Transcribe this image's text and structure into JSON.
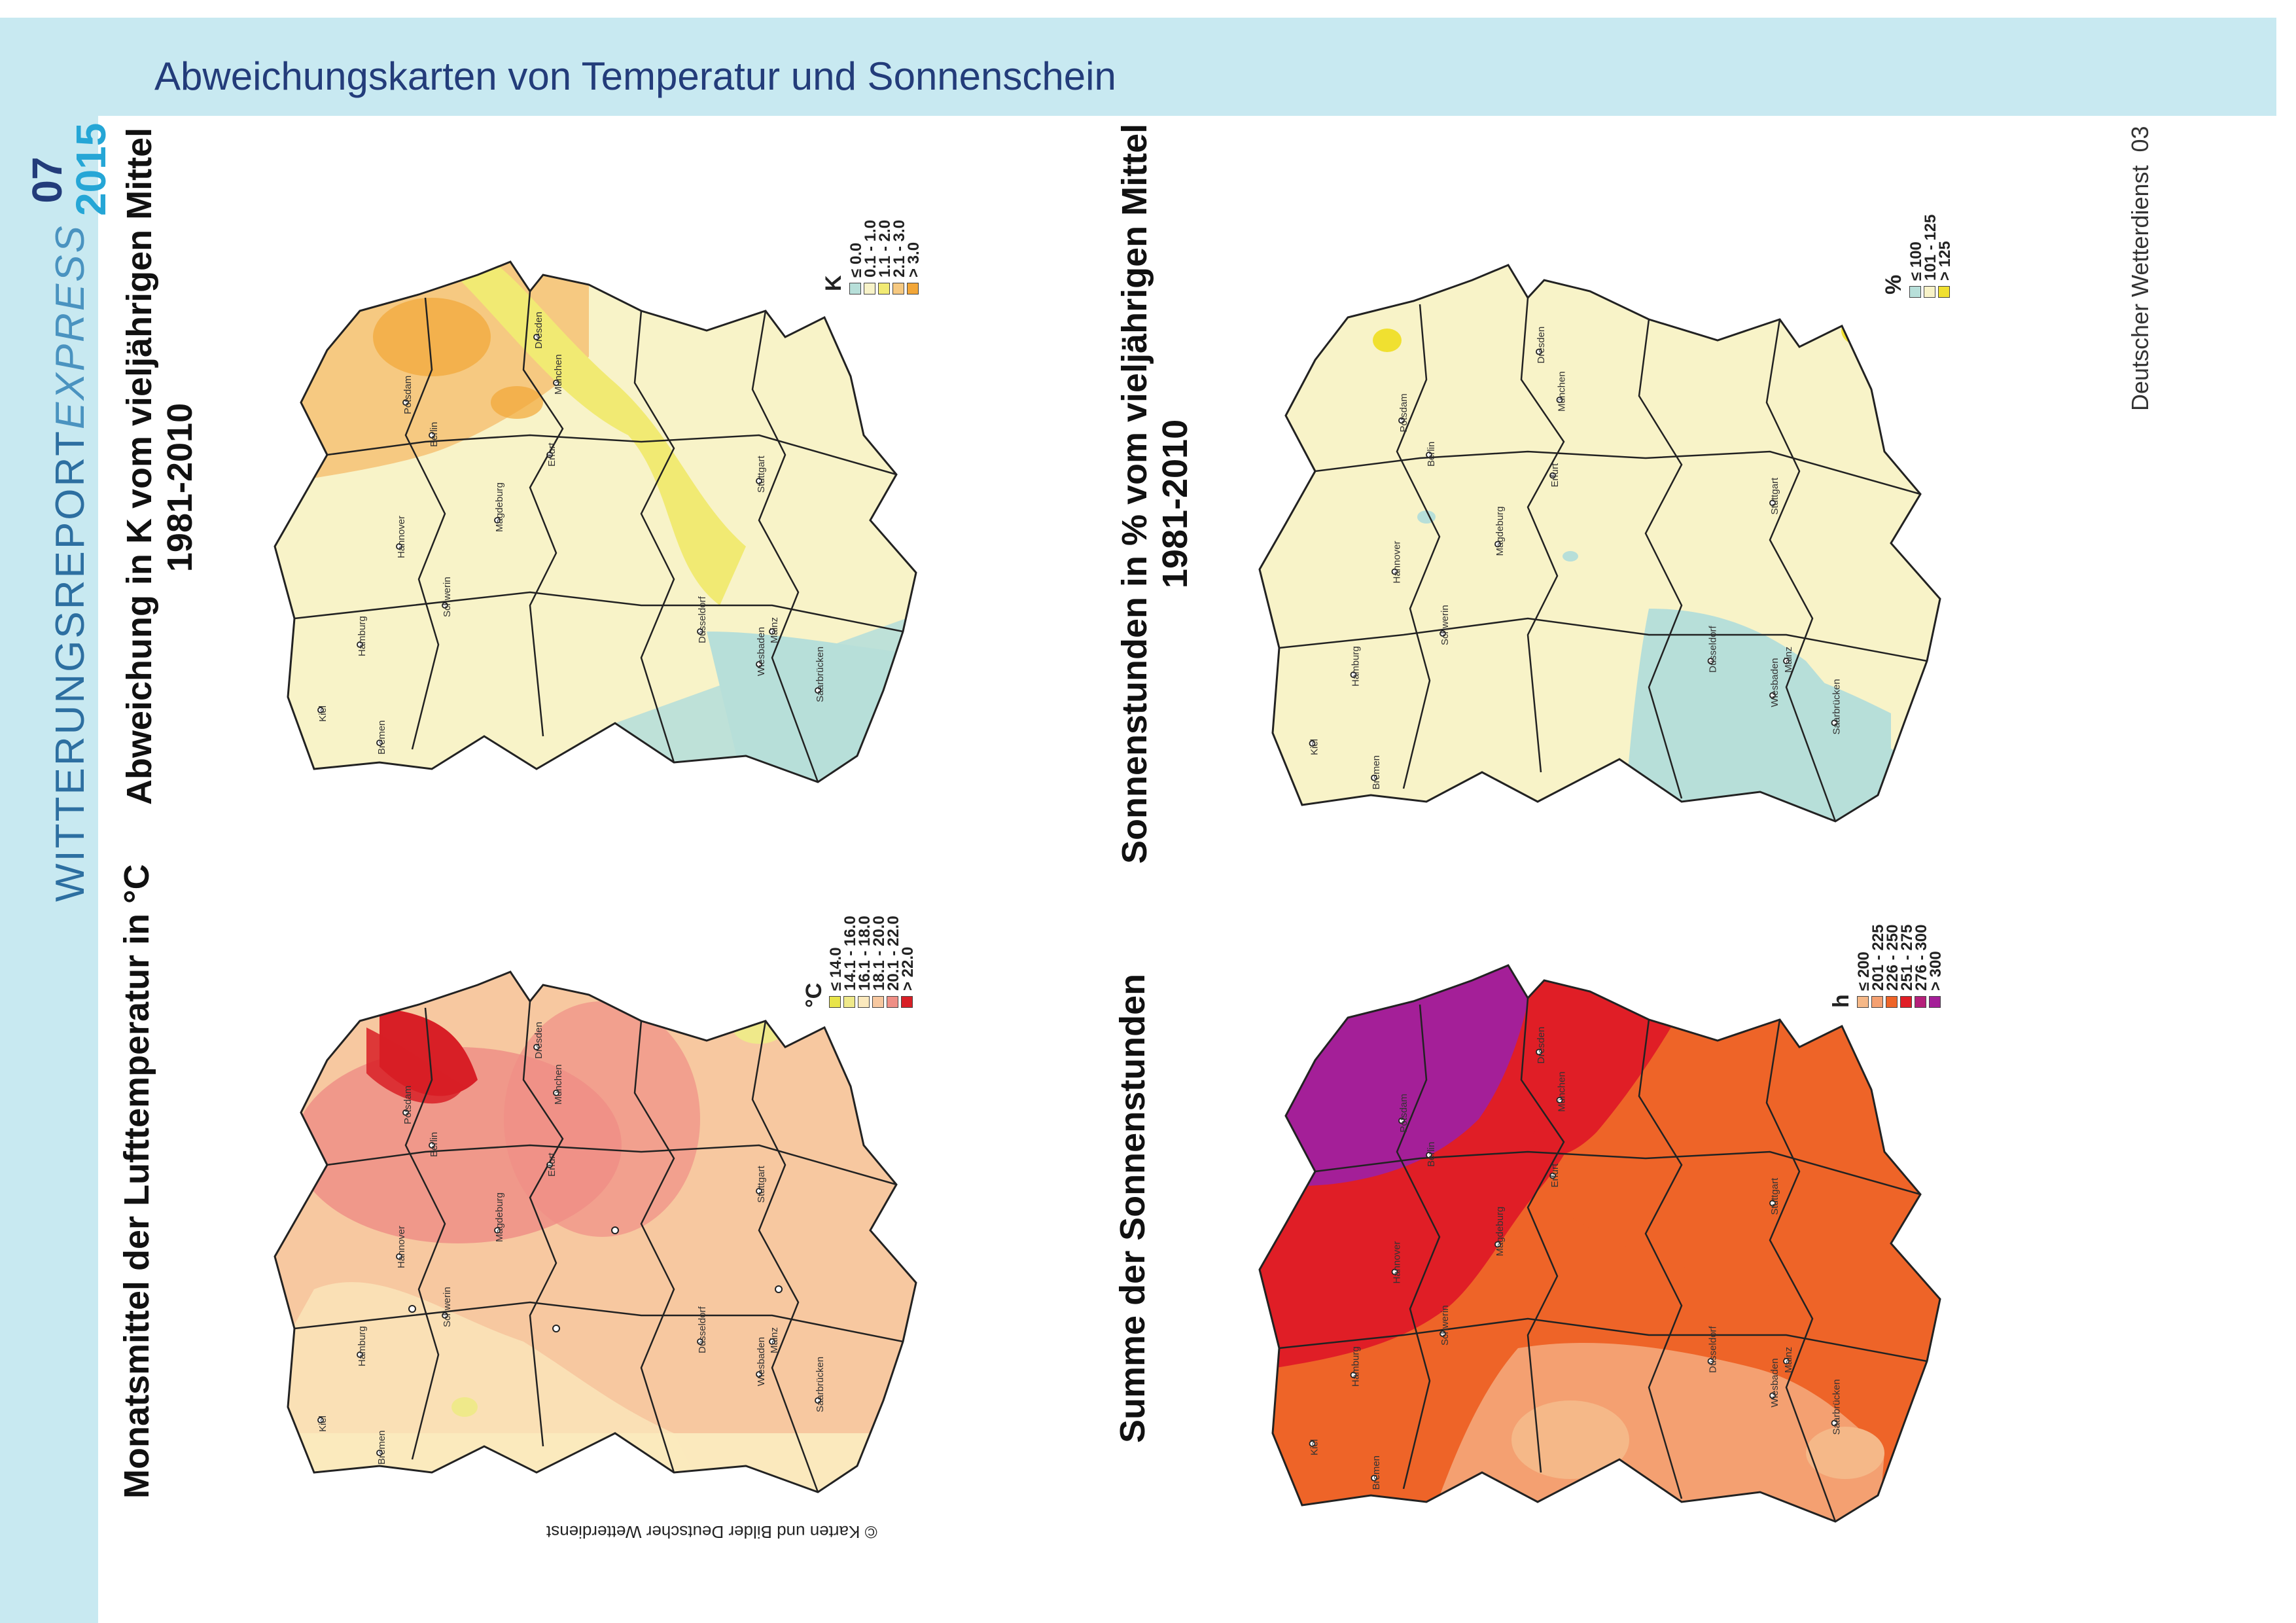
{
  "page": {
    "title": "Abweichungskarten von Temperatur und Sonnenschein",
    "brand_main": "WITTERUNGSREPORT",
    "brand_accent": "EXPRESS",
    "issue_month": "07",
    "issue_year": "2015",
    "publisher_label": "Deutscher Wetterdienst",
    "page_number": "03",
    "copyright": "© Karten und Bilder Deutscher Wetterdienst"
  },
  "colors": {
    "band": "#c8e9f1",
    "title_text": "#233c7a",
    "brand_text": "#2d6fa1",
    "year_text": "#25a6d6"
  },
  "maps": {
    "temperature": {
      "title": "Monatsmittel der Lufttemperatur in °C",
      "unit": "°C",
      "legend": [
        {
          "label": "≤ 14.0",
          "color": "#e8e44a"
        },
        {
          "label": "14.1 - 16.0",
          "color": "#efe98a"
        },
        {
          "label": "16.1 - 18.0",
          "color": "#fbe9bd"
        },
        {
          "label": "18.1 - 20.0",
          "color": "#f7c8a0"
        },
        {
          "label": "20.1 - 22.0",
          "color": "#ef8f86"
        },
        {
          "label": "> 22.0",
          "color": "#d81f26"
        }
      ]
    },
    "temp_anomaly": {
      "title_line1": "Abweichung in K vom vieljährigen Mittel",
      "title_line2": "1981-2010",
      "unit": "K",
      "legend": [
        {
          "label": "≤ 0.0",
          "color": "#b7dfd9"
        },
        {
          "label": "0.1 - 1.0",
          "color": "#f8f3c8"
        },
        {
          "label": "1.1 - 2.0",
          "color": "#f1ea73"
        },
        {
          "label": "2.1 - 3.0",
          "color": "#f6c981"
        },
        {
          "label": "> 3.0",
          "color": "#f2a638"
        }
      ]
    },
    "sunshine": {
      "title": "Summe der Sonnenstunden",
      "unit": "h",
      "legend": [
        {
          "label": "≤ 200",
          "color": "#f5b888"
        },
        {
          "label": "201 - 225",
          "color": "#f4a071"
        },
        {
          "label": "226 - 250",
          "color": "#ee6428"
        },
        {
          "label": "251 - 275",
          "color": "#e01e26"
        },
        {
          "label": "276 - 300",
          "color": "#b5207a"
        },
        {
          "label": "> 300",
          "color": "#a41f98"
        }
      ]
    },
    "sunshine_anomaly": {
      "title_line1": "Sonnenstunden in % vom vieljährigen Mittel",
      "title_line2": "1981-2010",
      "unit": "%",
      "legend": [
        {
          "label": "≤ 100",
          "color": "#b7dfd9"
        },
        {
          "label": "101 - 125",
          "color": "#f8f3c8"
        },
        {
          "label": "> 125",
          "color": "#f0e030"
        }
      ]
    }
  },
  "cities": [
    "Kiel",
    "Hamburg",
    "Schwerin",
    "Bremen",
    "Hannover",
    "Berlin",
    "Potsdam",
    "Magdeburg",
    "Düsseldorf",
    "Erfurt",
    "Dresden",
    "Wiesbaden",
    "Mainz",
    "Saarbrücken",
    "Stuttgart",
    "München"
  ]
}
